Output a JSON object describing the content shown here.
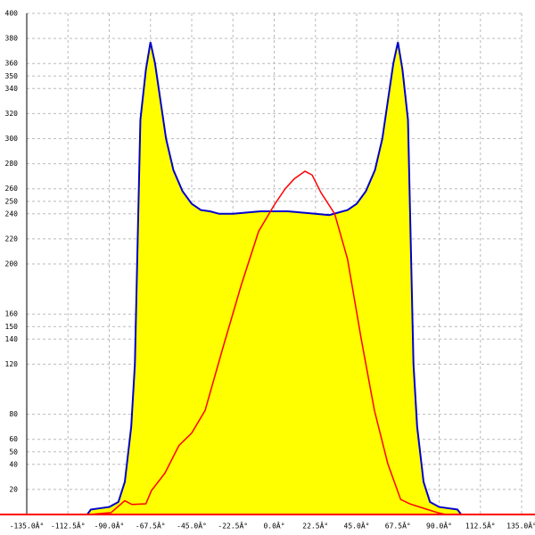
{
  "chart_data": {
    "type": "area",
    "xlim": [
      -135,
      135
    ],
    "xticks": [
      {
        "value": -135,
        "label": "-135.0Â°"
      },
      {
        "value": -112.5,
        "label": "-112.5Â°"
      },
      {
        "value": -90,
        "label": "-90.0Â°"
      },
      {
        "value": -67.5,
        "label": "-67.5Â°"
      },
      {
        "value": -45,
        "label": "-45.0Â°"
      },
      {
        "value": -22.5,
        "label": "-22.5Â°"
      },
      {
        "value": 0,
        "label": "0.0Â°"
      },
      {
        "value": 22.5,
        "label": "22.5Â°"
      },
      {
        "value": 45,
        "label": "45.0Â°"
      },
      {
        "value": 67.5,
        "label": "67.5Â°"
      },
      {
        "value": 90,
        "label": "90.0Â°"
      },
      {
        "value": 112.5,
        "label": "112.5Â°"
      },
      {
        "value": 135,
        "label": "135.0Â°"
      }
    ],
    "ylim": [
      0,
      400
    ],
    "yticks": [
      20,
      40,
      50,
      60,
      80,
      120,
      140,
      150,
      160,
      200,
      220,
      240,
      250,
      260,
      280,
      300,
      320,
      340,
      350,
      360,
      380,
      400
    ],
    "grid": true,
    "axis_color": "#ff0000",
    "series": [
      {
        "color": "#0000cc",
        "fill": "#ffff00",
        "x": [
          -102,
          -100,
          -90,
          -85,
          -81.5,
          -78,
          -76,
          -73,
          -70,
          -67.5,
          -65,
          -62,
          -59,
          -55,
          -50,
          -45,
          -40,
          -35,
          -30,
          -22.5,
          -15,
          -7.5,
          0,
          7.5,
          15,
          22.5,
          30,
          35,
          40,
          45,
          50,
          55,
          59,
          62,
          65,
          67.5,
          70,
          73,
          76,
          78,
          81.5,
          85,
          90,
          100,
          102
        ],
        "values": [
          0,
          4,
          6,
          10,
          26,
          70,
          120,
          315,
          355,
          377,
          360,
          330,
          300,
          275,
          258,
          248,
          243,
          242,
          240,
          240,
          241,
          242,
          242,
          242,
          241,
          240,
          239,
          241,
          243,
          248,
          258,
          275,
          300,
          330,
          360,
          377,
          355,
          315,
          120,
          70,
          26,
          10,
          6,
          4,
          0
        ]
      },
      {
        "color": "#ff0000",
        "x": [
          -101,
          -89,
          -81.5,
          -77.6,
          -70,
          -67,
          -59.6,
          -52,
          -45,
          -37.7,
          -28,
          -18,
          -8.5,
          0,
          6,
          11,
          16.8,
          20.7,
          25.5,
          33,
          40,
          47.5,
          54.7,
          62,
          69,
          74,
          81.5,
          89,
          93.6
        ],
        "values": [
          0,
          1.5,
          11,
          8,
          8.5,
          19,
          33,
          55,
          65,
          83,
          133,
          183,
          226,
          247,
          260,
          268,
          274,
          271,
          257,
          240,
          204,
          140,
          83,
          40.5,
          12,
          8.5,
          5,
          1.5,
          0
        ]
      }
    ]
  }
}
